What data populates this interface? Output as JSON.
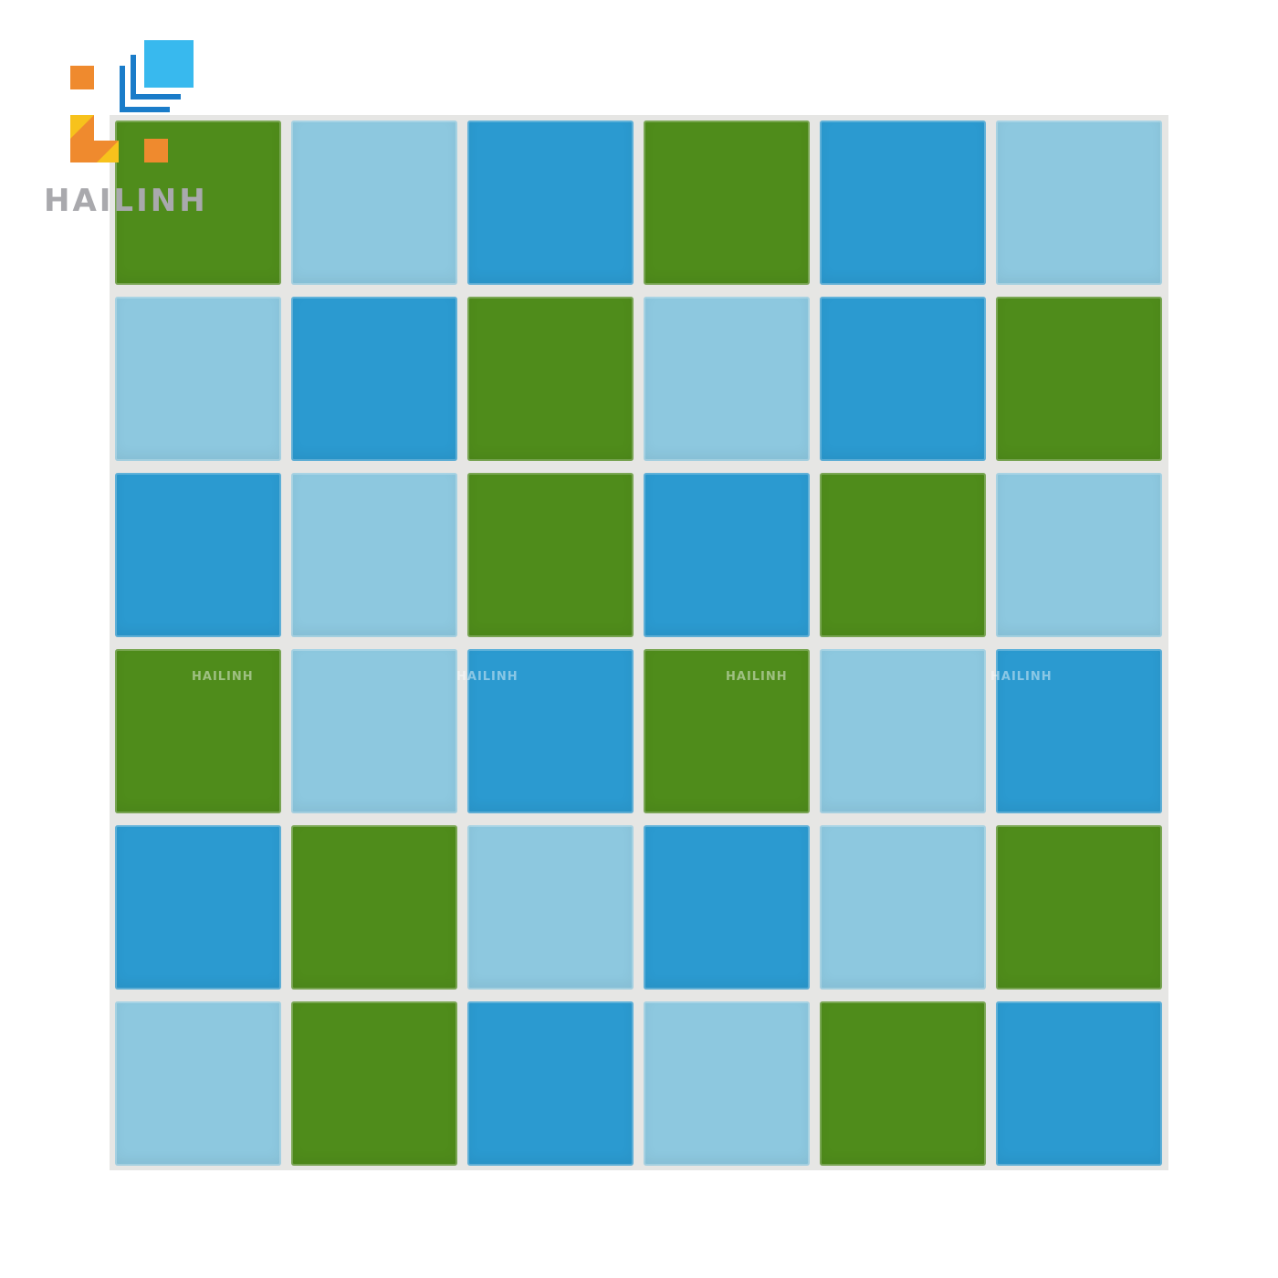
{
  "brand": {
    "name": "HAILINH",
    "orange": "#ef8a2e",
    "yellow": "#f7c21c",
    "blue_light": "#38b9ee",
    "blue_dark": "#1a7cc9"
  },
  "watermark": "HAILINH",
  "colors": {
    "G": "#4f8c1b",
    "L": "#8dc8df",
    "B": "#2b9ad0"
  },
  "grid": [
    [
      "G",
      "L",
      "B",
      "G",
      "B",
      "L"
    ],
    [
      "L",
      "B",
      "G",
      "L",
      "B",
      "G"
    ],
    [
      "B",
      "L",
      "G",
      "B",
      "G",
      "L"
    ],
    [
      "G",
      "L",
      "B",
      "G",
      "L",
      "B"
    ],
    [
      "B",
      "G",
      "L",
      "B",
      "L",
      "G"
    ],
    [
      "L",
      "G",
      "B",
      "L",
      "G",
      "B"
    ]
  ]
}
